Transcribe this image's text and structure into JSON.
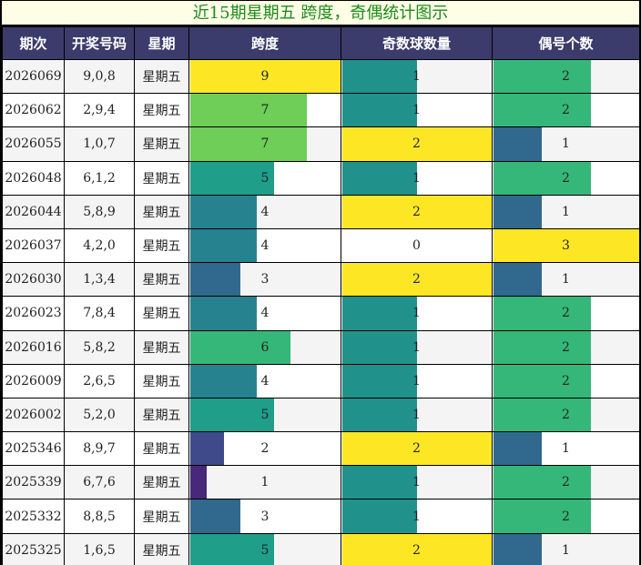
{
  "title": "近15期星期五 跨度，奇偶统计图示",
  "headers": [
    "期次",
    "开奖号码",
    "星期",
    "跨度",
    "奇数球数量",
    "偶号个数"
  ],
  "colors": {
    "1": "#482878",
    "2": "#3e4a89",
    "3": "#31688e",
    "4": "#26828e",
    "5": "#1f9e89",
    "6": "#35b779",
    "7": "#6ece58",
    "9": "#fde725",
    "odd_1": "#21918c",
    "odd_2": "#fde725",
    "even_1": "#31688e",
    "even_2": "#35b779",
    "even_3": "#fde725"
  },
  "rows": [
    {
      "issue": "2026069",
      "numbers": "9,0,8",
      "weekday": "星期五",
      "span": 9,
      "odd": 1,
      "even": 2
    },
    {
      "issue": "2026062",
      "numbers": "2,9,4",
      "weekday": "星期五",
      "span": 7,
      "odd": 1,
      "even": 2
    },
    {
      "issue": "2026055",
      "numbers": "1,0,7",
      "weekday": "星期五",
      "span": 7,
      "odd": 2,
      "even": 1
    },
    {
      "issue": "2026048",
      "numbers": "6,1,2",
      "weekday": "星期五",
      "span": 5,
      "odd": 1,
      "even": 2
    },
    {
      "issue": "2026044",
      "numbers": "5,8,9",
      "weekday": "星期五",
      "span": 4,
      "odd": 2,
      "even": 1
    },
    {
      "issue": "2026037",
      "numbers": "4,2,0",
      "weekday": "星期五",
      "span": 4,
      "odd": 0,
      "even": 3
    },
    {
      "issue": "2026030",
      "numbers": "1,3,4",
      "weekday": "星期五",
      "span": 3,
      "odd": 2,
      "even": 1
    },
    {
      "issue": "2026023",
      "numbers": "7,8,4",
      "weekday": "星期五",
      "span": 4,
      "odd": 1,
      "even": 2
    },
    {
      "issue": "2026016",
      "numbers": "5,8,2",
      "weekday": "星期五",
      "span": 6,
      "odd": 1,
      "even": 2
    },
    {
      "issue": "2026009",
      "numbers": "2,6,5",
      "weekday": "星期五",
      "span": 4,
      "odd": 1,
      "even": 2
    },
    {
      "issue": "2026002",
      "numbers": "5,2,0",
      "weekday": "星期五",
      "span": 5,
      "odd": 1,
      "even": 2
    },
    {
      "issue": "2025346",
      "numbers": "8,9,7",
      "weekday": "星期五",
      "span": 2,
      "odd": 2,
      "even": 1
    },
    {
      "issue": "2025339",
      "numbers": "6,7,6",
      "weekday": "星期五",
      "span": 1,
      "odd": 1,
      "even": 2
    },
    {
      "issue": "2025332",
      "numbers": "8,8,5",
      "weekday": "星期五",
      "span": 3,
      "odd": 1,
      "even": 2
    },
    {
      "issue": "2025325",
      "numbers": "1,6,5",
      "weekday": "星期五",
      "span": 5,
      "odd": 2,
      "even": 1
    }
  ],
  "chart_data": {
    "type": "table",
    "title": "近15期星期五 跨度，奇偶统计图示",
    "columns": [
      "期次",
      "开奖号码",
      "星期",
      "跨度",
      "奇数球数量",
      "偶号个数"
    ],
    "categories": [
      "2026069",
      "2026062",
      "2026055",
      "2026048",
      "2026044",
      "2026037",
      "2026030",
      "2026023",
      "2026016",
      "2026009",
      "2026002",
      "2025346",
      "2025339",
      "2025332",
      "2025325"
    ],
    "series": [
      {
        "name": "跨度",
        "values": [
          9,
          7,
          7,
          5,
          4,
          4,
          3,
          4,
          6,
          4,
          5,
          2,
          1,
          3,
          5
        ],
        "max": 9
      },
      {
        "name": "奇数球数量",
        "values": [
          1,
          1,
          2,
          1,
          2,
          0,
          2,
          1,
          1,
          1,
          1,
          2,
          1,
          1,
          2
        ],
        "max": 2
      },
      {
        "name": "偶号个数",
        "values": [
          2,
          2,
          1,
          2,
          1,
          3,
          1,
          2,
          2,
          2,
          2,
          1,
          2,
          2,
          1
        ],
        "max": 3
      }
    ]
  }
}
